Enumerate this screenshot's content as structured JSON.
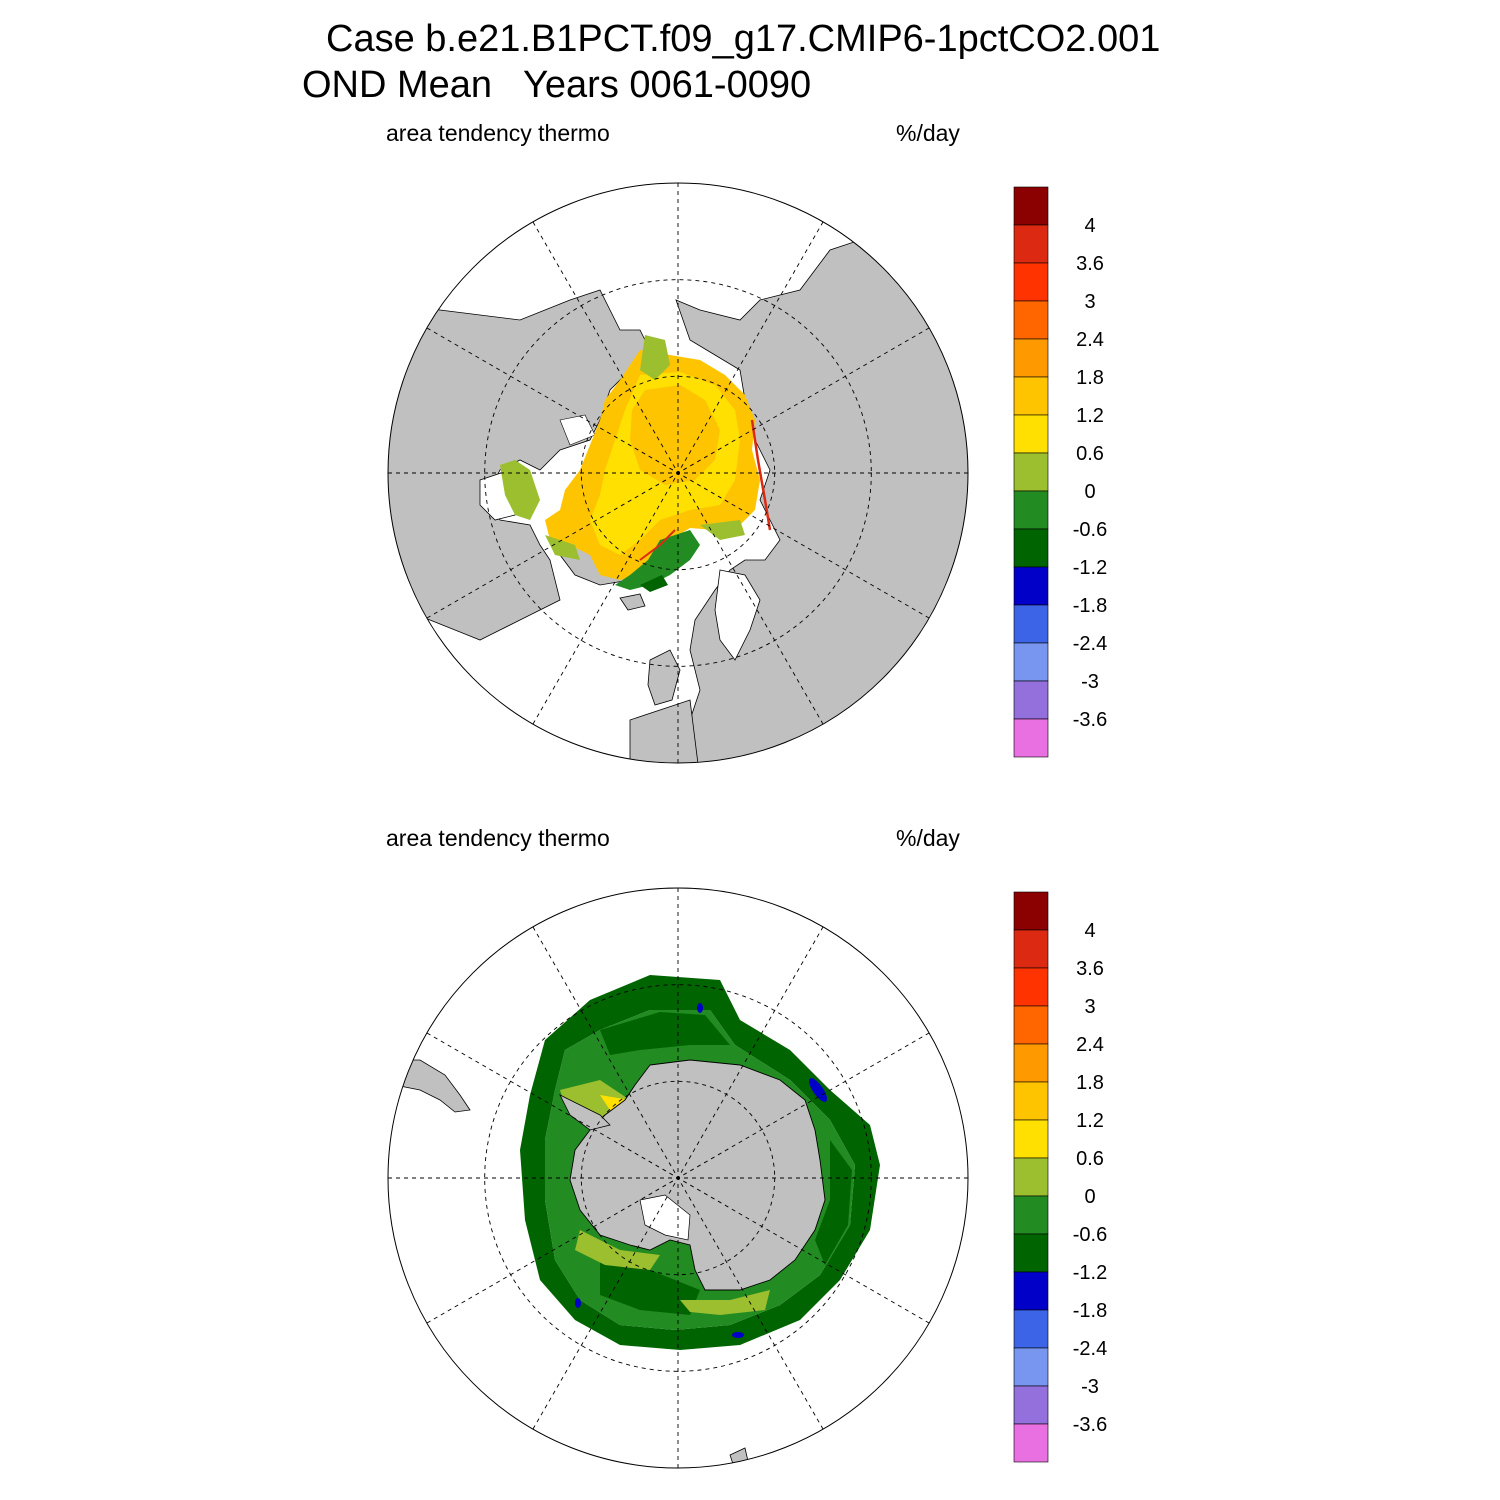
{
  "header": {
    "title_line1": "Case b.e21.B1PCT.f09_g17.CMIP6-1pctCO2.001",
    "title_line2": "OND Mean   Years 0061-0090"
  },
  "panels": [
    {
      "id": "north",
      "left_label": "area tendency thermo",
      "right_label": "%/day"
    },
    {
      "id": "south",
      "left_label": "area tendency thermo",
      "right_label": "%/day"
    }
  ],
  "colorbar": {
    "labels": [
      "4",
      "3.6",
      "3",
      "2.4",
      "1.8",
      "1.2",
      "0.6",
      "0",
      "-0.6",
      "-1.2",
      "-1.8",
      "-2.4",
      "-3",
      "-3.6"
    ],
    "colors": [
      "#8b0000",
      "#dc2a12",
      "#ff3300",
      "#ff6600",
      "#ff9900",
      "#ffc400",
      "#ffe000",
      "#9bbf2e",
      "#228b22",
      "#006400",
      "#0000c8",
      "#3c64e6",
      "#7896f0",
      "#9370db",
      "#e870e0"
    ]
  },
  "colors": {
    "land": "#c0c0c0",
    "ocean": "#ffffff",
    "grid": "#000000"
  }
}
